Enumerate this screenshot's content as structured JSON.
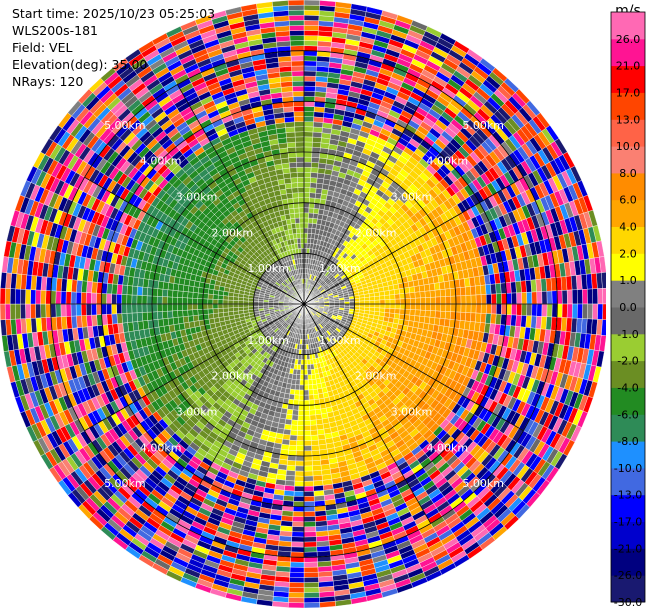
{
  "header": {
    "start_time": "Start time: 2025/10/23 05:25:03",
    "instrument": "WLS200s-181",
    "field": "Field: VEL",
    "elevation": "Elevation(deg): 35.00",
    "nrays": "NRays: 120"
  },
  "chart_data": {
    "type": "heatmap",
    "projection": "polar-ppi",
    "field": "VEL",
    "units": "m/s",
    "nrays": 120,
    "elevation_deg": 35.0,
    "max_range_km": 6.0,
    "range_rings_km": [
      1,
      2,
      3,
      4,
      5
    ],
    "ring_labels": [
      "1.00km",
      "2.00km",
      "3.00km",
      "4.00km",
      "5.00km"
    ],
    "colorbar": {
      "unit_label": "m/s",
      "levels": [
        -30.0,
        -26.0,
        -21.0,
        -17.0,
        -13.0,
        -10.0,
        -8.0,
        -6.0,
        -4.0,
        -2.0,
        -1.0,
        0.0,
        1.0,
        2.0,
        4.0,
        6.0,
        8.0,
        10.0,
        13.0,
        17.0,
        21.0,
        26.0
      ],
      "tick_labels": [
        "-30.0",
        "-26.0",
        "-21.0",
        "-17.0",
        "-13.0",
        "-10.0",
        "-8.0",
        "-6.0",
        "-4.0",
        "-2.0",
        "-1.0",
        "0.0",
        "1.0",
        "2.0",
        "4.0",
        "6.0",
        "8.0",
        "10.0",
        "13.0",
        "17.0",
        "21.0",
        "26.0"
      ],
      "colors": [
        "#191970",
        "#000080",
        "#0000cd",
        "#0000ff",
        "#4169e1",
        "#1e90ff",
        "#2e8b57",
        "#228b22",
        "#6b8e23",
        "#9acd32",
        "#696969",
        "#808080",
        "#ffff00",
        "#ffd700",
        "#ffa500",
        "#ff8c00",
        "#fa8072",
        "#ff6347",
        "#ff4500",
        "#ff0000",
        "#ff1493",
        "#ff69b4"
      ]
    },
    "pattern": {
      "inner_center": 0.5,
      "bands": [
        {
          "range_km": [
            0.0,
            1.0
          ],
          "description_values": [
            -2.0,
            1.0
          ]
        },
        {
          "range_km": [
            1.0,
            2.5
          ],
          "description_values": [
            -4.0,
            4.0
          ]
        },
        {
          "range_km": [
            2.5,
            3.5
          ],
          "description_values": [
            -8.0,
            6.0
          ]
        },
        {
          "range_km": [
            3.5,
            6.0
          ],
          "description_values": [
            -30.0,
            26.0
          ]
        }
      ]
    }
  }
}
